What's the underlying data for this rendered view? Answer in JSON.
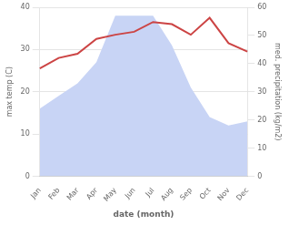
{
  "chart_data": {
    "type": "line",
    "xlabel": "date (month)",
    "ylabel": "max temp (C)",
    "y2label": "med. precipitation (kg/m2)",
    "categories": [
      "Jan",
      "Feb",
      "Mar",
      "Apr",
      "May",
      "Jun",
      "Jul",
      "Aug",
      "Sep",
      "Oct",
      "Nov",
      "Dec"
    ],
    "series": [
      {
        "type": "area",
        "color": "#c8d4f5",
        "values": [
          16,
          19,
          22,
          27,
          38,
          38,
          38,
          31,
          21,
          14,
          12,
          13
        ]
      },
      {
        "type": "line",
        "color": "#cc4444",
        "values": [
          25.5,
          28.0,
          29.0,
          32.5,
          33.5,
          34.2,
          36.5,
          36.0,
          33.5,
          37.5,
          31.5,
          29.5
        ]
      }
    ],
    "ylim": [
      0,
      40
    ],
    "yticks": [
      0,
      10,
      20,
      30,
      40
    ],
    "y2lim": [
      0,
      60
    ],
    "y2ticks": [
      0,
      10,
      20,
      30,
      40,
      50,
      60
    ],
    "grid": true
  }
}
